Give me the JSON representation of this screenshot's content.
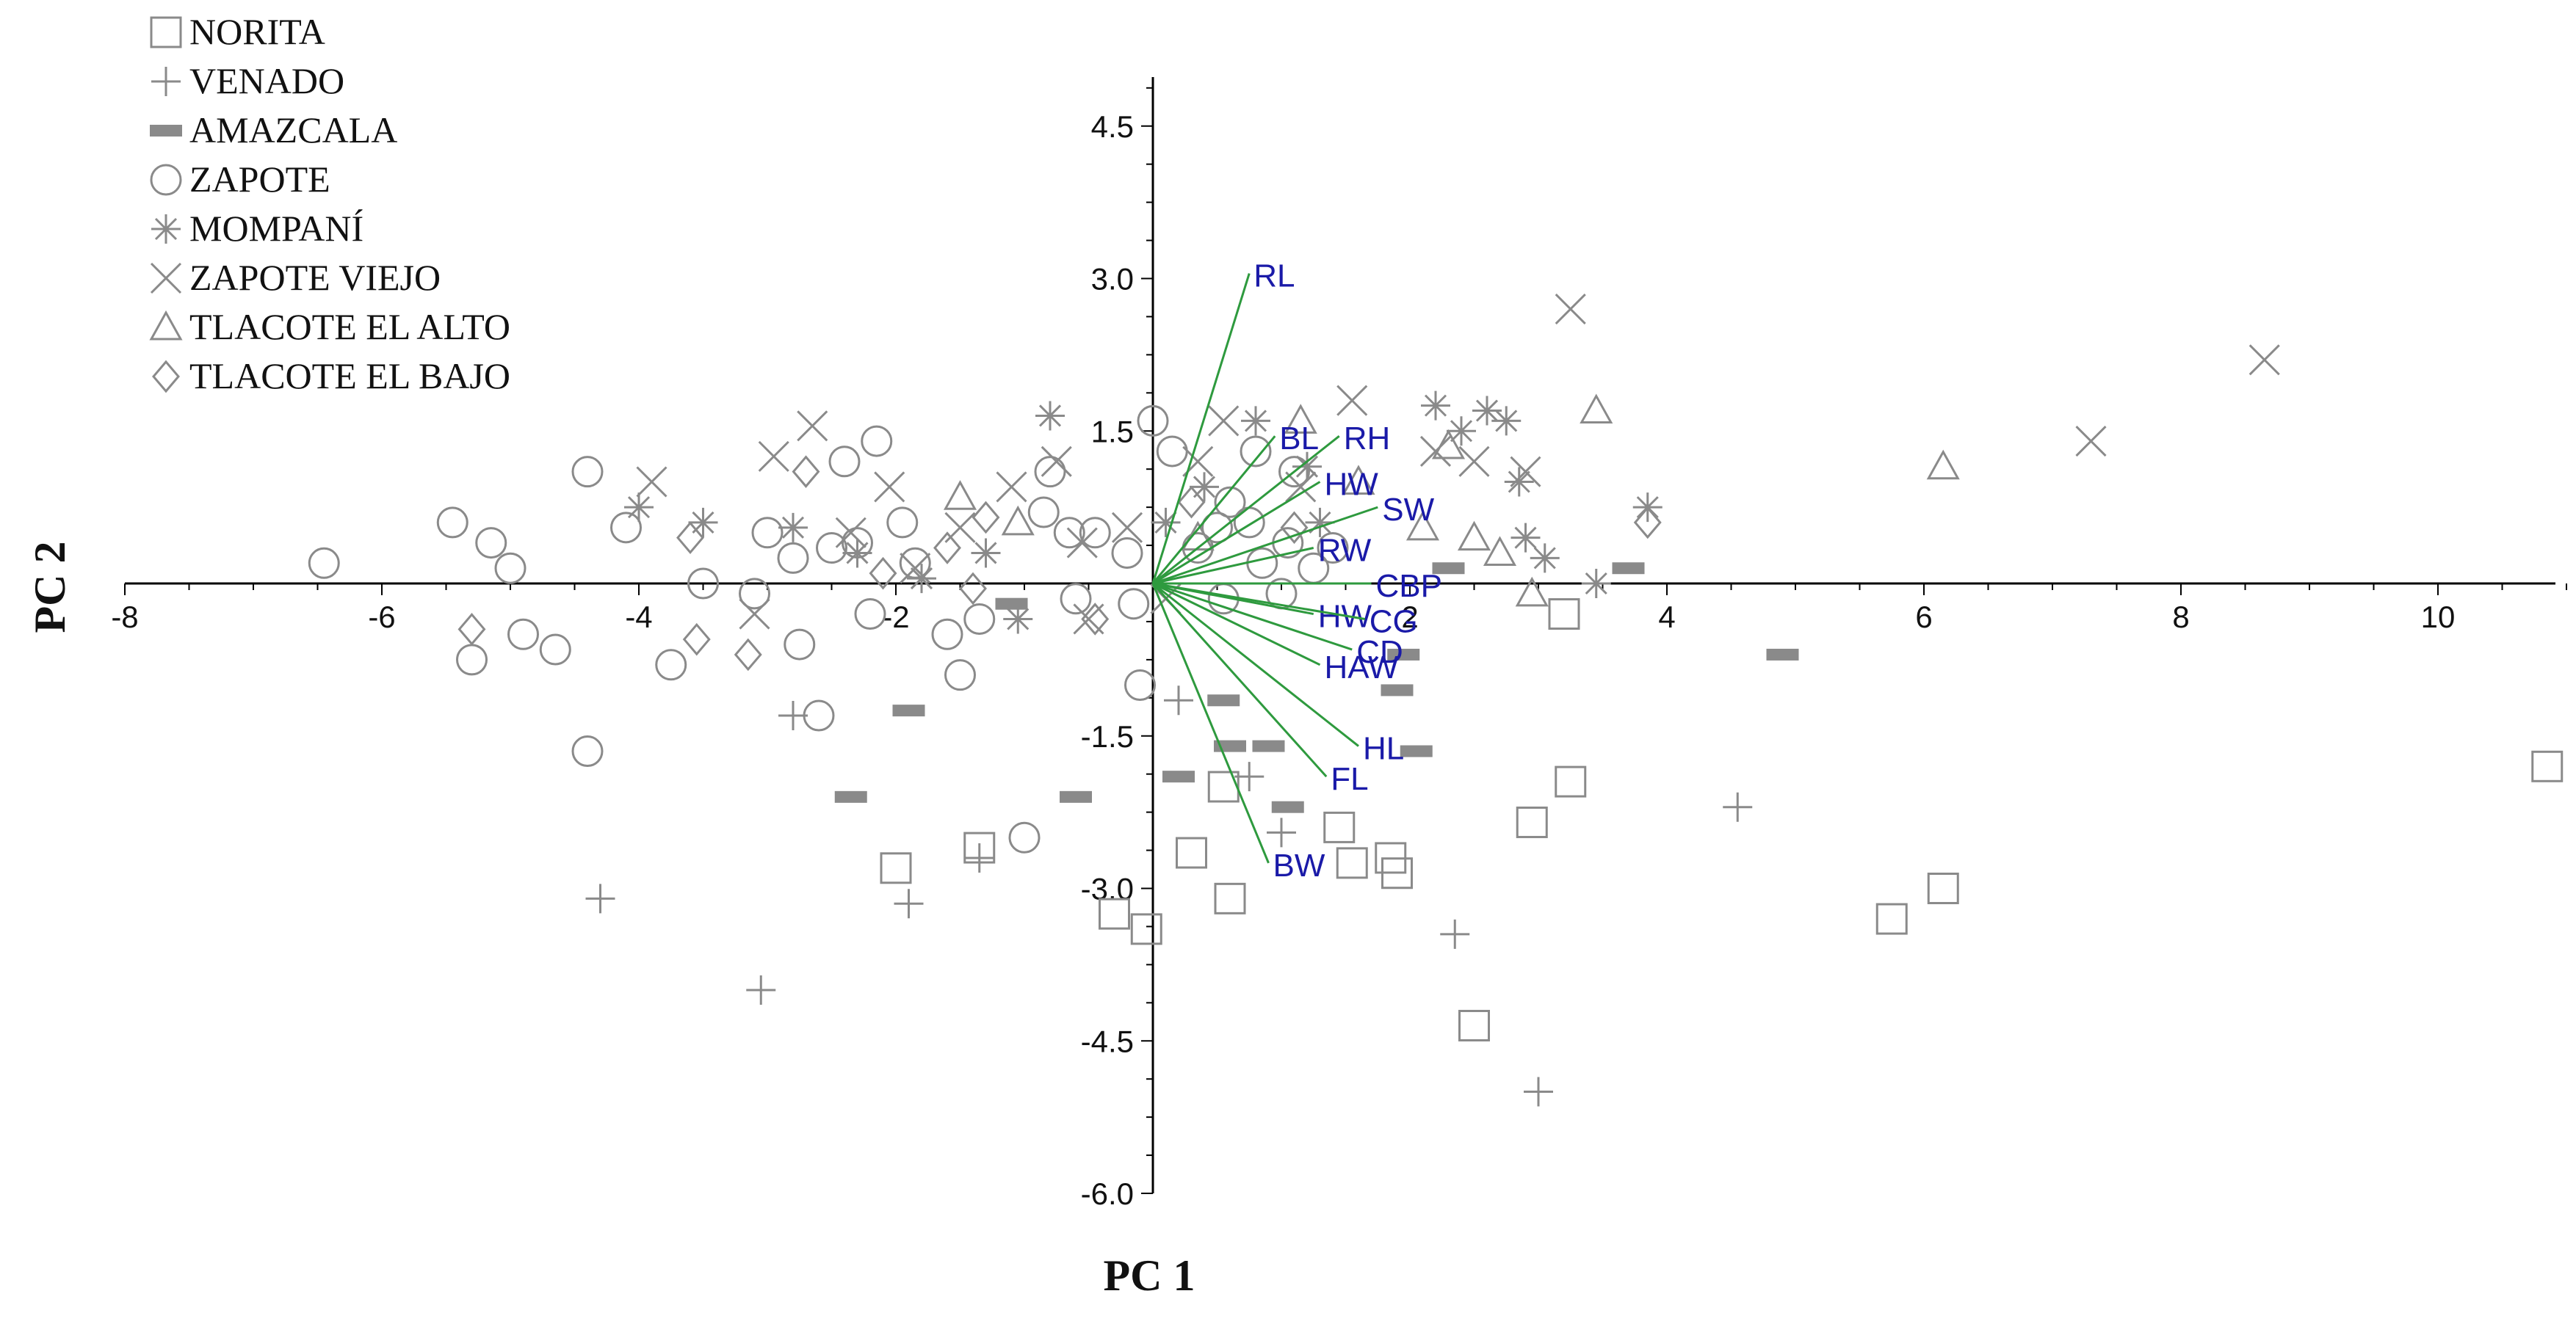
{
  "chart_data": {
    "type": "scatter",
    "title": "",
    "xlabel": "PC 1",
    "ylabel": "PC 2",
    "xlim": [
      -8,
      11
    ],
    "ylim": [
      -6.0,
      5.0
    ],
    "x_ticks": [
      -8,
      -6,
      -4,
      -2,
      2,
      4,
      6,
      8,
      10
    ],
    "y_ticks": [
      4.5,
      3.0,
      1.5,
      -1.5,
      -3.0,
      -4.5,
      -6.0
    ],
    "x_tick_labels": [
      "-8",
      "-6",
      "-4",
      "-2",
      "2",
      "4",
      "6",
      "8",
      "10"
    ],
    "y_tick_labels": [
      "4.5",
      "3.0",
      "1.5",
      "-1.5",
      "-3.0",
      "-4.5",
      "-6.0"
    ],
    "legend_position": "top-left",
    "series": [
      {
        "name": "NORITA",
        "marker": "square",
        "color": "#8a8a8a",
        "points": [
          [
            -2.0,
            -2.8
          ],
          [
            -1.35,
            -2.6
          ],
          [
            -0.3,
            -3.25
          ],
          [
            -0.05,
            -3.4
          ],
          [
            0.3,
            -2.65
          ],
          [
            0.55,
            -2.0
          ],
          [
            0.6,
            -3.1
          ],
          [
            1.45,
            -2.4
          ],
          [
            1.55,
            -2.75
          ],
          [
            1.85,
            -2.7
          ],
          [
            1.9,
            -2.85
          ],
          [
            2.5,
            -4.35
          ],
          [
            2.95,
            -2.35
          ],
          [
            3.2,
            -0.3
          ],
          [
            3.25,
            -1.95
          ],
          [
            5.75,
            -3.3
          ],
          [
            6.15,
            -3.0
          ],
          [
            10.85,
            -1.8
          ]
        ]
      },
      {
        "name": "VENADO",
        "marker": "plus",
        "color": "#8a8a8a",
        "points": [
          [
            -4.3,
            -3.1
          ],
          [
            -3.05,
            -4.0
          ],
          [
            -2.8,
            -1.3
          ],
          [
            -1.9,
            -3.15
          ],
          [
            -1.35,
            -2.7
          ],
          [
            0.2,
            -1.15
          ],
          [
            0.75,
            -1.9
          ],
          [
            1.0,
            -2.45
          ],
          [
            2.35,
            -3.45
          ],
          [
            3.0,
            -5.0
          ],
          [
            4.55,
            -2.2
          ]
        ]
      },
      {
        "name": "AMAZCALA",
        "marker": "dash",
        "color": "#8a8a8a",
        "points": [
          [
            -2.35,
            -2.1
          ],
          [
            -1.9,
            -1.25
          ],
          [
            -1.1,
            -0.2
          ],
          [
            -0.6,
            -2.1
          ],
          [
            0.2,
            -1.9
          ],
          [
            0.55,
            -1.15
          ],
          [
            0.6,
            -1.6
          ],
          [
            0.9,
            -1.6
          ],
          [
            1.05,
            -2.2
          ],
          [
            1.9,
            -1.05
          ],
          [
            1.95,
            -0.7
          ],
          [
            2.05,
            -1.65
          ],
          [
            2.3,
            0.15
          ],
          [
            3.7,
            0.15
          ],
          [
            4.9,
            -0.7
          ]
        ]
      },
      {
        "name": "ZAPOTE",
        "marker": "circle",
        "color": "#8a8a8a",
        "points": [
          [
            -6.45,
            0.2
          ],
          [
            -5.45,
            0.6
          ],
          [
            -5.15,
            0.4
          ],
          [
            -5.0,
            0.15
          ],
          [
            -4.9,
            -0.5
          ],
          [
            -4.65,
            -0.65
          ],
          [
            -5.3,
            -0.75
          ],
          [
            -4.4,
            1.1
          ],
          [
            -4.4,
            -1.65
          ],
          [
            -4.1,
            0.55
          ],
          [
            -3.75,
            -0.8
          ],
          [
            -3.5,
            0.0
          ],
          [
            -3.1,
            -0.1
          ],
          [
            -3.0,
            0.5
          ],
          [
            -2.8,
            0.25
          ],
          [
            -2.75,
            -0.6
          ],
          [
            -2.6,
            -1.3
          ],
          [
            -2.5,
            0.35
          ],
          [
            -2.4,
            1.2
          ],
          [
            -2.3,
            0.4
          ],
          [
            -2.2,
            -0.3
          ],
          [
            -2.15,
            1.4
          ],
          [
            -1.95,
            0.6
          ],
          [
            -1.85,
            0.2
          ],
          [
            -1.6,
            -0.5
          ],
          [
            -1.5,
            -0.9
          ],
          [
            -1.35,
            -0.35
          ],
          [
            -1.0,
            -2.5
          ],
          [
            -0.85,
            0.7
          ],
          [
            -0.8,
            1.1
          ],
          [
            -0.65,
            0.5
          ],
          [
            -0.6,
            -0.15
          ],
          [
            -0.45,
            0.5
          ],
          [
            -0.2,
            0.3
          ],
          [
            -0.15,
            -0.2
          ],
          [
            0.0,
            1.6
          ],
          [
            -0.1,
            -1.0
          ],
          [
            0.15,
            1.3
          ],
          [
            0.35,
            0.35
          ],
          [
            0.5,
            0.55
          ],
          [
            0.55,
            -0.15
          ],
          [
            0.6,
            0.8
          ],
          [
            0.75,
            0.6
          ],
          [
            0.8,
            1.3
          ],
          [
            0.85,
            0.2
          ],
          [
            1.0,
            -0.1
          ],
          [
            1.05,
            0.4
          ],
          [
            1.1,
            1.1
          ],
          [
            1.25,
            0.15
          ],
          [
            1.4,
            0.35
          ]
        ]
      },
      {
        "name": "MOMPANÍ",
        "marker": "asterisk",
        "color": "#8a8a8a",
        "points": [
          [
            -4.0,
            0.75
          ],
          [
            -3.5,
            0.6
          ],
          [
            -2.8,
            0.55
          ],
          [
            -2.3,
            0.3
          ],
          [
            -1.8,
            0.05
          ],
          [
            -1.3,
            0.3
          ],
          [
            -1.05,
            -0.35
          ],
          [
            -0.8,
            1.65
          ],
          [
            0.1,
            0.6
          ],
          [
            0.4,
            0.95
          ],
          [
            0.8,
            1.6
          ],
          [
            1.2,
            1.15
          ],
          [
            1.3,
            0.6
          ],
          [
            2.2,
            1.75
          ],
          [
            2.4,
            1.5
          ],
          [
            2.6,
            1.7
          ],
          [
            2.75,
            1.6
          ],
          [
            2.85,
            1.0
          ],
          [
            2.9,
            0.45
          ],
          [
            3.05,
            0.25
          ],
          [
            3.45,
            0.0
          ],
          [
            3.85,
            0.75
          ]
        ]
      },
      {
        "name": "ZAPOTE VIEJO",
        "marker": "x",
        "color": "#8a8a8a",
        "points": [
          [
            -3.9,
            1.0
          ],
          [
            -3.1,
            -0.3
          ],
          [
            -2.95,
            1.25
          ],
          [
            -2.65,
            1.55
          ],
          [
            -2.35,
            0.5
          ],
          [
            -2.05,
            0.95
          ],
          [
            -1.85,
            0.15
          ],
          [
            -1.5,
            0.55
          ],
          [
            -1.1,
            0.95
          ],
          [
            -0.75,
            1.2
          ],
          [
            -0.55,
            0.4
          ],
          [
            -0.5,
            -0.35
          ],
          [
            -0.2,
            0.55
          ],
          [
            0.1,
            -0.15
          ],
          [
            0.35,
            1.2
          ],
          [
            0.55,
            1.6
          ],
          [
            1.15,
            0.95
          ],
          [
            1.55,
            1.8
          ],
          [
            2.2,
            1.3
          ],
          [
            2.5,
            1.2
          ],
          [
            2.9,
            1.1
          ],
          [
            3.25,
            2.7
          ],
          [
            7.3,
            1.4
          ],
          [
            8.65,
            2.2
          ]
        ]
      },
      {
        "name": "TLACOTE EL ALTO",
        "marker": "triangle",
        "color": "#8a8a8a",
        "points": [
          [
            -1.5,
            0.85
          ],
          [
            -1.05,
            0.6
          ],
          [
            0.35,
            0.45
          ],
          [
            1.15,
            1.6
          ],
          [
            1.6,
            1.0
          ],
          [
            2.1,
            0.55
          ],
          [
            2.3,
            1.35
          ],
          [
            2.5,
            0.45
          ],
          [
            2.7,
            0.3
          ],
          [
            2.95,
            -0.1
          ],
          [
            3.45,
            1.7
          ],
          [
            6.15,
            1.15
          ]
        ]
      },
      {
        "name": "TLACOTE EL BAJO",
        "marker": "diamond",
        "color": "#8a8a8a",
        "points": [
          [
            -5.3,
            -0.45
          ],
          [
            -3.6,
            0.45
          ],
          [
            -3.55,
            -0.55
          ],
          [
            -3.15,
            -0.7
          ],
          [
            -2.7,
            1.1
          ],
          [
            -2.1,
            0.1
          ],
          [
            -1.6,
            0.35
          ],
          [
            -1.4,
            -0.05
          ],
          [
            -1.3,
            0.65
          ],
          [
            -0.45,
            -0.35
          ],
          [
            0.3,
            0.8
          ],
          [
            1.1,
            0.55
          ],
          [
            3.85,
            0.6
          ]
        ]
      }
    ],
    "loadings": [
      {
        "label": "RL",
        "x": 0.75,
        "y": 3.05
      },
      {
        "label": "BL",
        "x": 0.95,
        "y": 1.45
      },
      {
        "label": "RH",
        "x": 1.45,
        "y": 1.45
      },
      {
        "label": "HW",
        "x": 1.3,
        "y": 1.0
      },
      {
        "label": "SW",
        "x": 1.75,
        "y": 0.75
      },
      {
        "label": "RW",
        "x": 1.25,
        "y": 0.35
      },
      {
        "label": "CBP",
        "x": 1.7,
        "y": 0.0
      },
      {
        "label": "HW",
        "x": 1.25,
        "y": -0.3
      },
      {
        "label": "CG",
        "x": 1.65,
        "y": -0.35
      },
      {
        "label": "CD",
        "x": 1.55,
        "y": -0.65
      },
      {
        "label": "HAW",
        "x": 1.3,
        "y": -0.8
      },
      {
        "label": "HL",
        "x": 1.6,
        "y": -1.6
      },
      {
        "label": "FL",
        "x": 1.35,
        "y": -1.9
      },
      {
        "label": "BW",
        "x": 0.9,
        "y": -2.75
      }
    ],
    "colors": {
      "markers": "#8a8a8a",
      "loading_lines": "#2e9a3e",
      "loading_labels": "#1a1aa8",
      "axes": "#000000"
    }
  }
}
